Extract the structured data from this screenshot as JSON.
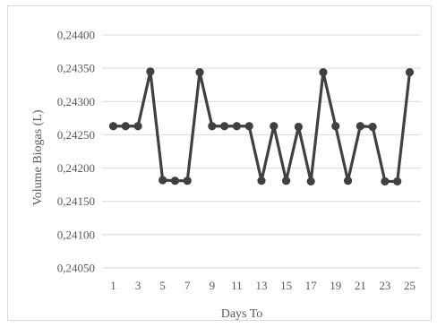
{
  "chart_data": {
    "type": "line",
    "title": "",
    "xlabel": "Days To",
    "ylabel": "Volume Biogas (L)",
    "x": [
      1,
      2,
      3,
      4,
      5,
      6,
      7,
      8,
      9,
      10,
      11,
      12,
      13,
      14,
      15,
      16,
      17,
      18,
      19,
      20,
      21,
      22,
      23,
      24,
      25
    ],
    "x_tick_labels": [
      "1",
      "3",
      "5",
      "7",
      "9",
      "11",
      "13",
      "15",
      "17",
      "19",
      "21",
      "23",
      "25"
    ],
    "x_tick_values": [
      1,
      3,
      5,
      7,
      9,
      11,
      13,
      15,
      17,
      19,
      21,
      23,
      25
    ],
    "y_tick_labels": [
      "0,24050",
      "0,24100",
      "0,24150",
      "0,24200",
      "0,24250",
      "0,24300",
      "0,24350",
      "0,24400"
    ],
    "ylim": [
      0.2405,
      0.244
    ],
    "series": [
      {
        "values": [
          0.24263,
          0.24263,
          0.24263,
          0.24345,
          0.24182,
          0.24181,
          0.24181,
          0.24344,
          0.24263,
          0.24263,
          0.24263,
          0.24263,
          0.24181,
          0.24263,
          0.24181,
          0.24262,
          0.2418,
          0.24344,
          0.24263,
          0.24181,
          0.24263,
          0.24262,
          0.2418,
          0.2418,
          0.24344
        ]
      }
    ],
    "grid": true,
    "legend": "none",
    "colors": {
      "line": "#404040",
      "marker": "#404040",
      "grid": "#d9d9d9",
      "text": "#595959"
    }
  }
}
